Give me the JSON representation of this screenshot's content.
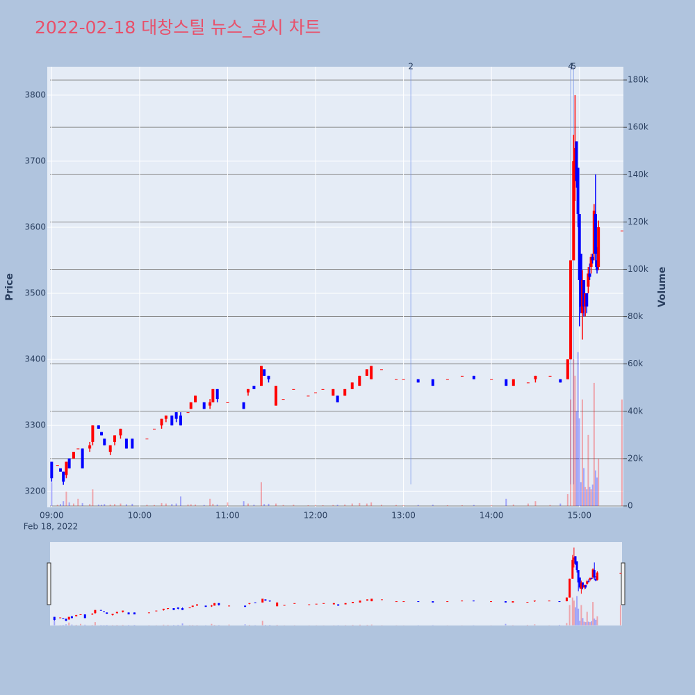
{
  "chart_data": {
    "type": "candlestick",
    "title": "2022-02-18 대창스틸 뉴스_공시 차트",
    "y_label": "Price",
    "y2_label": "Volume",
    "x_date_label": "Feb 18, 2022",
    "increasing_color": "#ff0000",
    "decreasing_color": "#0000ff",
    "x": [
      "09:00",
      "09:04",
      "09:06",
      "09:08",
      "09:10",
      "09:12",
      "09:15",
      "09:18",
      "09:21",
      "09:26",
      "09:28",
      "09:32",
      "09:34",
      "09:36",
      "09:40",
      "09:43",
      "09:47",
      "09:51",
      "09:55",
      "10:05",
      "10:10",
      "10:15",
      "10:18",
      "10:22",
      "10:25",
      "10:28",
      "10:33",
      "10:35",
      "10:38",
      "10:44",
      "10:48",
      "10:50",
      "10:53",
      "11:00",
      "11:11",
      "11:14",
      "11:18",
      "11:23",
      "11:25",
      "11:28",
      "11:33",
      "11:38",
      "11:45",
      "11:55",
      "12:00",
      "12:05",
      "12:12",
      "12:15",
      "12:20",
      "12:25",
      "12:30",
      "12:35",
      "12:38",
      "12:45",
      "12:55",
      "13:00",
      "13:10",
      "13:20",
      "13:30",
      "13:40",
      "13:48",
      "14:00",
      "14:10",
      "14:15",
      "14:25",
      "14:30",
      "14:40",
      "14:47",
      "14:52",
      "14:54",
      "14:56",
      "14:57",
      "14:58",
      "14:59",
      "15:00",
      "15:01",
      "15:02",
      "15:03",
      "15:04",
      "15:05",
      "15:06",
      "15:07",
      "15:08",
      "15:09",
      "15:10",
      "15:11",
      "15:12",
      "15:13",
      "15:29"
    ],
    "open": [
      3245,
      3240,
      3235,
      3230,
      3225,
      3250,
      3250,
      3265,
      3265,
      3265,
      3275,
      3300,
      3290,
      3280,
      3260,
      3275,
      3285,
      3280,
      3280,
      3280,
      3295,
      3300,
      3310,
      3315,
      3320,
      3315,
      3320,
      3325,
      3335,
      3335,
      3330,
      3335,
      3355,
      3335,
      3335,
      3350,
      3360,
      3360,
      3385,
      3375,
      3330,
      3340,
      3355,
      3345,
      3350,
      3355,
      3345,
      3345,
      3345,
      3355,
      3360,
      3375,
      3370,
      3385,
      3370,
      3370,
      3370,
      3370,
      3370,
      3375,
      3375,
      3370,
      3370,
      3360,
      3365,
      3370,
      3375,
      3370,
      3370,
      3400,
      3550,
      3700,
      3730,
      3690,
      3620,
      3560,
      3470,
      3520,
      3480,
      3500,
      3510,
      3530,
      3540,
      3555,
      3560,
      3620,
      3550,
      3540,
      3595
    ],
    "high": [
      3245,
      3240,
      3235,
      3230,
      3245,
      3250,
      3260,
      3265,
      3265,
      3275,
      3300,
      3300,
      3290,
      3280,
      3270,
      3285,
      3295,
      3280,
      3280,
      3280,
      3295,
      3310,
      3315,
      3315,
      3320,
      3320,
      3320,
      3335,
      3345,
      3335,
      3340,
      3355,
      3355,
      3335,
      3335,
      3355,
      3360,
      3390,
      3385,
      3375,
      3360,
      3340,
      3355,
      3345,
      3350,
      3355,
      3355,
      3345,
      3355,
      3365,
      3375,
      3385,
      3390,
      3385,
      3370,
      3370,
      3370,
      3370,
      3370,
      3375,
      3375,
      3370,
      3370,
      3370,
      3365,
      3375,
      3375,
      3370,
      3400,
      3550,
      3740,
      3800,
      3730,
      3690,
      3620,
      3560,
      3535,
      3520,
      3500,
      3500,
      3540,
      3545,
      3560,
      3560,
      3635,
      3680,
      3570,
      3610,
      3595
    ],
    "low": [
      3215,
      3240,
      3230,
      3210,
      3220,
      3235,
      3250,
      3265,
      3235,
      3260,
      3270,
      3295,
      3285,
      3270,
      3255,
      3270,
      3280,
      3265,
      3265,
      3280,
      3295,
      3295,
      3305,
      3300,
      3305,
      3300,
      3320,
      3325,
      3335,
      3325,
      3325,
      3335,
      3335,
      3335,
      3325,
      3345,
      3355,
      3360,
      3375,
      3365,
      3330,
      3340,
      3355,
      3345,
      3350,
      3355,
      3345,
      3335,
      3345,
      3355,
      3360,
      3375,
      3370,
      3385,
      3370,
      3370,
      3365,
      3360,
      3370,
      3375,
      3370,
      3370,
      3360,
      3360,
      3365,
      3365,
      3375,
      3365,
      3370,
      3400,
      3550,
      3640,
      3660,
      3600,
      3450,
      3470,
      3430,
      3465,
      3465,
      3470,
      3500,
      3520,
      3530,
      3545,
      3550,
      3540,
      3530,
      3535,
      3595
    ],
    "close": [
      3220,
      3240,
      3230,
      3215,
      3245,
      3235,
      3260,
      3265,
      3235,
      3270,
      3300,
      3295,
      3285,
      3270,
      3270,
      3285,
      3295,
      3265,
      3265,
      3280,
      3295,
      3310,
      3315,
      3300,
      3310,
      3300,
      3320,
      3335,
      3345,
      3325,
      3335,
      3355,
      3340,
      3335,
      3325,
      3355,
      3355,
      3390,
      3375,
      3370,
      3360,
      3340,
      3355,
      3345,
      3350,
      3355,
      3355,
      3335,
      3355,
      3365,
      3375,
      3385,
      3390,
      3385,
      3370,
      3370,
      3365,
      3360,
      3370,
      3375,
      3370,
      3370,
      3360,
      3370,
      3365,
      3375,
      3375,
      3365,
      3400,
      3550,
      3700,
      3720,
      3670,
      3620,
      3520,
      3480,
      3520,
      3480,
      3500,
      3480,
      3530,
      3525,
      3555,
      3550,
      3625,
      3560,
      3535,
      3600,
      3595
    ],
    "volume": [
      10000,
      500,
      800,
      2000,
      6000,
      1500,
      1000,
      3000,
      1200,
      800,
      7000,
      600,
      500,
      800,
      600,
      800,
      1000,
      700,
      900,
      500,
      400,
      1200,
      1000,
      800,
      1000,
      4000,
      600,
      700,
      600,
      400,
      3000,
      900,
      600,
      1500,
      2000,
      1000,
      500,
      10000,
      800,
      900,
      1000,
      400,
      500,
      300,
      400,
      300,
      400,
      500,
      600,
      1000,
      1200,
      1000,
      1500,
      500,
      400,
      300,
      400,
      500,
      300,
      300,
      400,
      300,
      3000,
      600,
      1000,
      2000,
      400,
      1000,
      5000,
      45000,
      62000,
      55000,
      40000,
      65000,
      37000,
      10000,
      45000,
      16000,
      8000,
      7000,
      30000,
      8000,
      7000,
      9000,
      52000,
      15000,
      12000,
      20000,
      45000
    ],
    "xlim": [
      "08:57",
      "15:30"
    ],
    "xticks": [
      "09:00",
      "10:00",
      "11:00",
      "12:00",
      "13:00",
      "14:00",
      "15:00"
    ],
    "ylim": [
      3176,
      3843
    ],
    "yticks": [
      3200,
      3300,
      3400,
      3500,
      3600,
      3700,
      3800
    ],
    "y2lim": [
      -600,
      185600
    ],
    "y2ticks": [
      0,
      {
        "value": 20000,
        "label": "20k"
      },
      {
        "value": 40000,
        "label": "40k"
      },
      {
        "value": 60000,
        "label": "60k"
      },
      {
        "value": 80000,
        "label": "80k"
      },
      {
        "value": 100000,
        "label": "100k"
      },
      {
        "value": 120000,
        "label": "120k"
      },
      {
        "value": 140000,
        "label": "140k"
      },
      {
        "value": 160000,
        "label": "160k"
      },
      {
        "value": 180000,
        "label": "180k"
      }
    ],
    "annotations": [
      {
        "x": "13:05",
        "text": "2"
      },
      {
        "x": "14:54",
        "text": "4"
      },
      {
        "x": "14:56",
        "text": "5"
      }
    ],
    "grid": true
  }
}
